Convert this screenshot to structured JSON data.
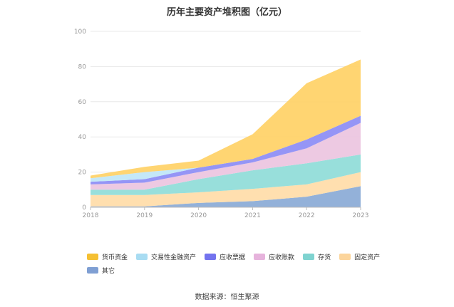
{
  "chart_data": {
    "type": "area",
    "stacked": true,
    "title": "历年主要资产堆积图（亿元）",
    "x": [
      "2018",
      "2019",
      "2020",
      "2021",
      "2022",
      "2023"
    ],
    "ylim": [
      0,
      100
    ],
    "yticks": [
      "0",
      "20",
      "40",
      "60",
      "80",
      "100"
    ],
    "grid": true,
    "legend_position": "bottom-left",
    "series": [
      {
        "name": "其它",
        "color": "#8aaad6",
        "values": [
          0.5,
          0.5,
          2.5,
          3.5,
          6,
          12
        ]
      },
      {
        "name": "固定资产",
        "color": "#ffdca8",
        "values": [
          6.5,
          6.5,
          6,
          7,
          7,
          8
        ]
      },
      {
        "name": "存货",
        "color": "#8fdcd8",
        "values": [
          3,
          3,
          7.5,
          10.5,
          12,
          10
        ]
      },
      {
        "name": "应收账款",
        "color": "#ebc4e0",
        "values": [
          3,
          4,
          4,
          4.5,
          8.5,
          18
        ]
      },
      {
        "name": "应收票据",
        "color": "#8c8cf5",
        "values": [
          1.5,
          2,
          2.5,
          2,
          5,
          4
        ]
      },
      {
        "name": "交易性金融资产",
        "color": "#bfe6f7",
        "values": [
          2,
          4,
          0,
          0,
          0,
          0
        ]
      },
      {
        "name": "货币资金",
        "color": "#ffd166",
        "values": [
          1.5,
          3,
          4,
          14,
          32,
          32
        ]
      }
    ]
  },
  "legend_order": [
    "货币资金",
    "交易性金融资产",
    "应收票据",
    "应收账款",
    "存货",
    "固定资产",
    "其它"
  ],
  "legend_colors": {
    "货币资金": "#f5c033",
    "交易性金融资产": "#a8dcf2",
    "应收票据": "#7373ee",
    "应收账款": "#e6b3dc",
    "存货": "#7fd3d0",
    "固定资产": "#fcd59c",
    "其它": "#7f9fd3"
  },
  "source": "数据来源：恒生聚源"
}
